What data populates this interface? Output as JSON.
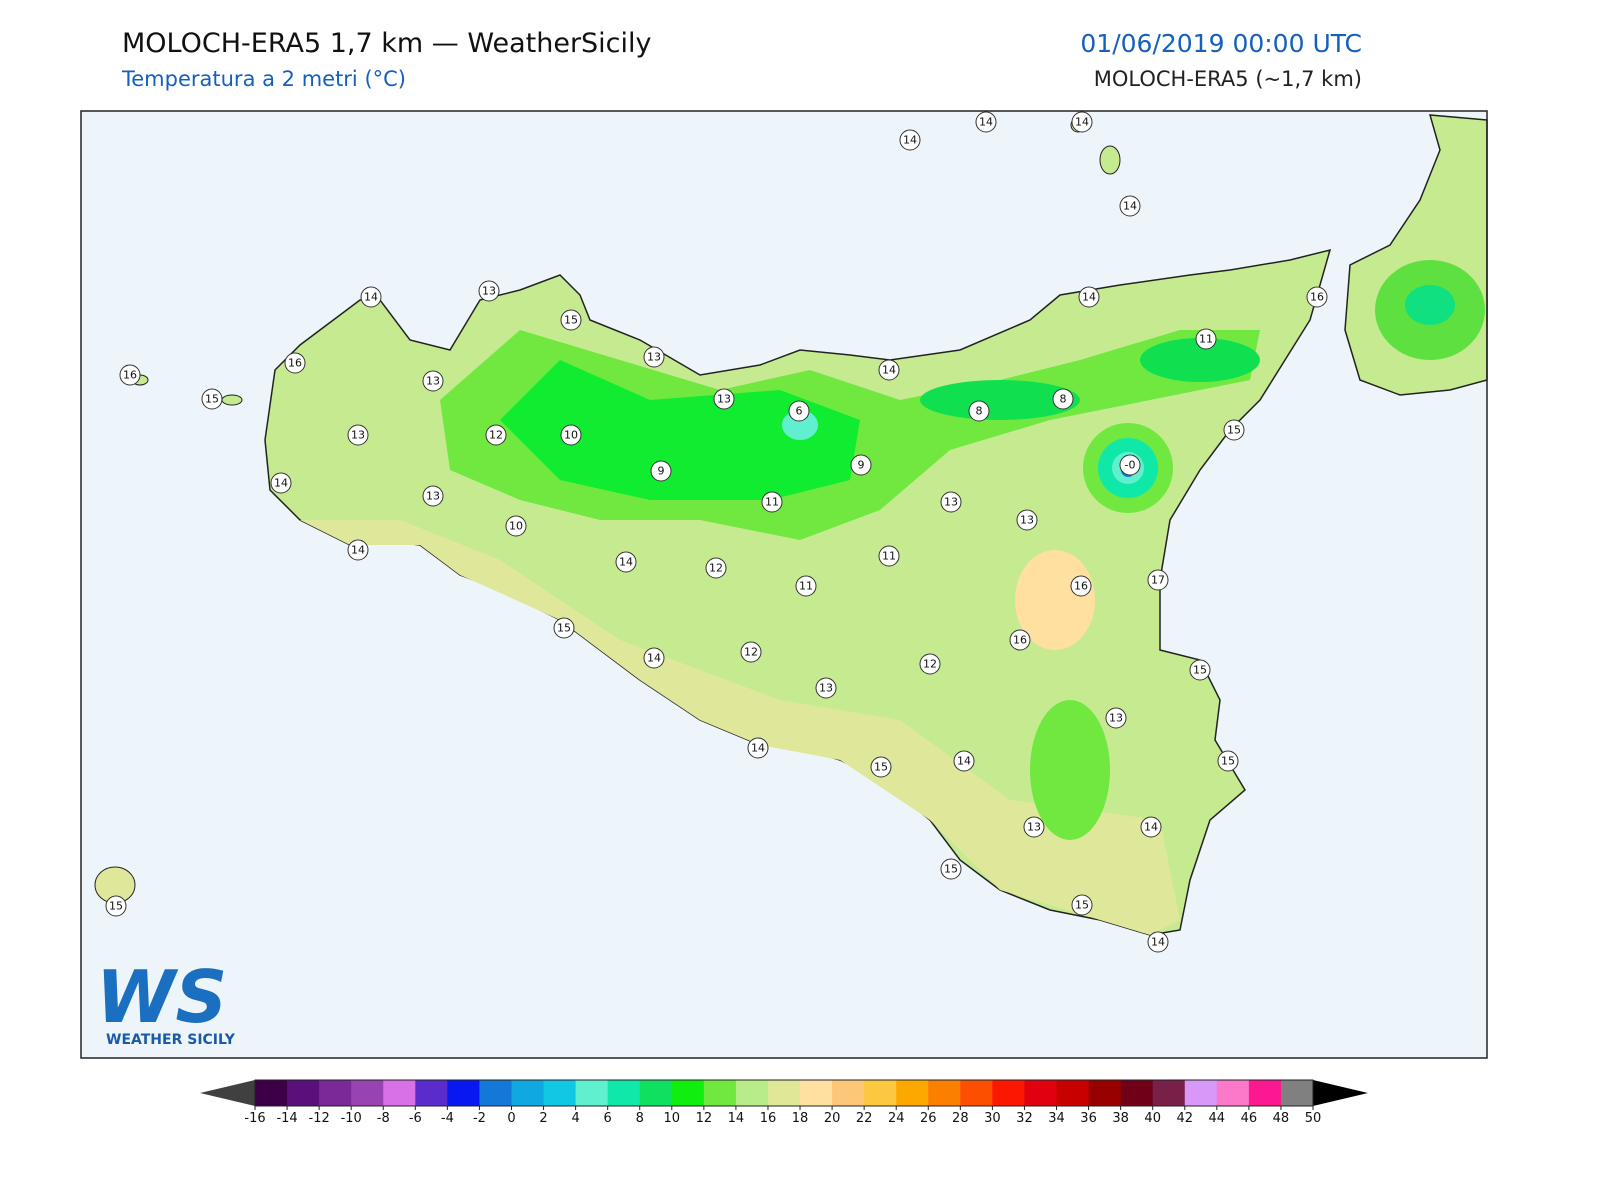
{
  "header": {
    "title": "MOLOCH-ERA5 1,7 km — WeatherSicily",
    "subtitle": "Temperatura a 2 metri (°C)",
    "datetime": "01/06/2019 00:00 UTC",
    "model": "MOLOCH-ERA5 (~1,7 km)"
  },
  "stations": [
    14,
    14,
    14,
    14,
    14,
    13,
    15,
    13,
    16,
    16,
    15,
    13,
    13,
    12,
    10,
    13,
    6,
    14,
    8,
    8,
    14,
    11,
    16,
    15,
    {
      "value": 0,
      "label": "-0"
    },
    9,
    9,
    11,
    13,
    14,
    10,
    14,
    14,
    12,
    11,
    11,
    13,
    13,
    16,
    17,
    16,
    15,
    14,
    12,
    12,
    13,
    15,
    13,
    14,
    15,
    14,
    15,
    13,
    14,
    15,
    15,
    14,
    15
  ],
  "logo": {
    "mark": "WS",
    "name": "WEATHER SICILY"
  },
  "colorbar": {
    "ticks": [
      -16,
      -14,
      -12,
      -10,
      -8,
      -6,
      -4,
      -2,
      0,
      2,
      4,
      6,
      8,
      10,
      12,
      14,
      16,
      18,
      20,
      22,
      24,
      26,
      28,
      30,
      32,
      34,
      36,
      38,
      40,
      42,
      44,
      46,
      48,
      50
    ],
    "colors": [
      "#3d0048",
      "#5a0f7a",
      "#7a2a98",
      "#9844b0",
      "#d870e8",
      "#5a2ccc",
      "#0818f0",
      "#1478d8",
      "#10a8e0",
      "#10c8e4",
      "#60f0d0",
      "#10e8a8",
      "#10e060",
      "#10ee10",
      "#70e840",
      "#b8ec88",
      "#e0e898",
      "#ffe0a0",
      "#fcc878",
      "#fcc840",
      "#fca800",
      "#fc8000",
      "#fc5000",
      "#fc1800",
      "#e00010",
      "#c80000",
      "#980000",
      "#700018",
      "#782048",
      "#d898f8",
      "#fc78c8",
      "#fc1890",
      "#808080"
    ],
    "under_color": "#404040",
    "over_color": "#000000"
  }
}
